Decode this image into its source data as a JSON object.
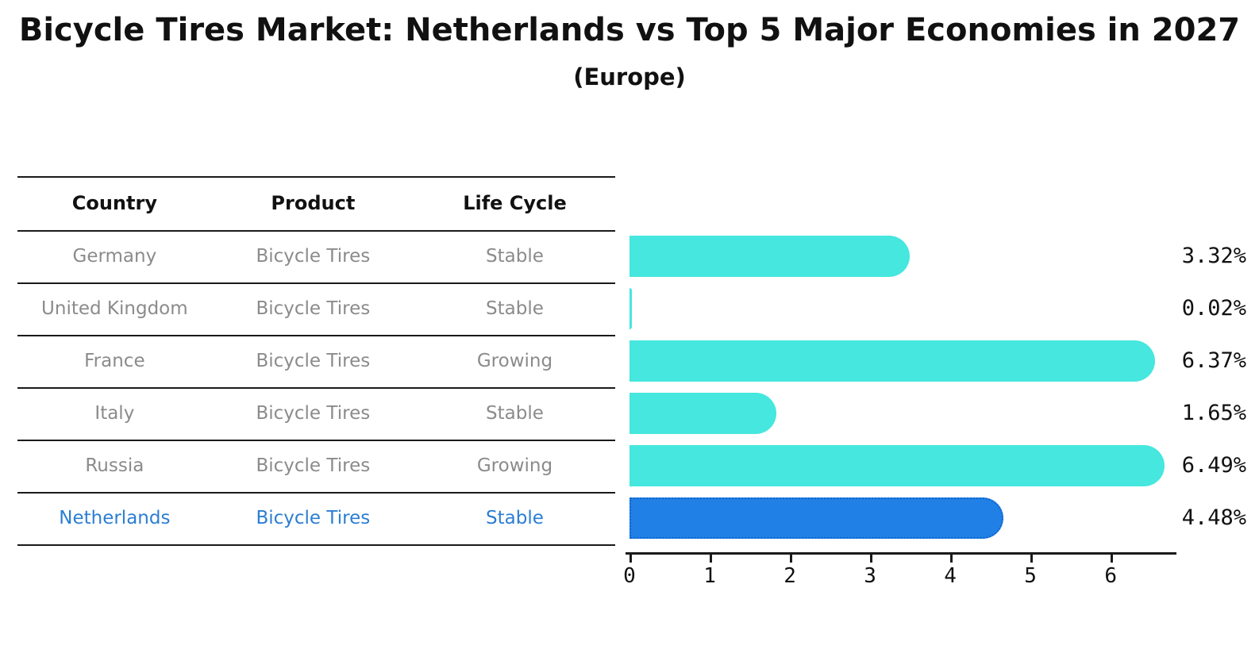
{
  "title": "Bicycle Tires Market: Netherlands vs Top 5 Major Economies in 2027",
  "subtitle": "(Europe)",
  "table": {
    "headers": [
      "Country",
      "Product",
      "Life Cycle"
    ],
    "rows": [
      {
        "country": "Germany",
        "product": "Bicycle Tires",
        "life_cycle": "Stable",
        "highlight": false
      },
      {
        "country": "United Kingdom",
        "product": "Bicycle Tires",
        "life_cycle": "Stable",
        "highlight": false
      },
      {
        "country": "France",
        "product": "Bicycle Tires",
        "life_cycle": "Growing",
        "highlight": false
      },
      {
        "country": "Italy",
        "product": "Bicycle Tires",
        "life_cycle": "Stable",
        "highlight": false
      },
      {
        "country": "Russia",
        "product": "Bicycle Tires",
        "life_cycle": "Growing",
        "highlight": false
      },
      {
        "country": "Netherlands",
        "product": "Bicycle Tires",
        "life_cycle": "Stable",
        "highlight": true
      }
    ]
  },
  "chart_data": {
    "type": "bar",
    "orientation": "horizontal",
    "title": "Bicycle Tires Market: Netherlands vs Top 5 Major Economies in 2027",
    "subtitle": "(Europe)",
    "categories": [
      "Germany",
      "United Kingdom",
      "France",
      "Italy",
      "Russia",
      "Netherlands"
    ],
    "values": [
      3.32,
      0.02,
      6.37,
      1.65,
      6.49,
      4.48
    ],
    "value_labels": [
      "3.32%",
      "0.02%",
      "6.37%",
      "1.65%",
      "6.49%",
      "4.48%"
    ],
    "xlabel": "",
    "ylabel": "",
    "xlim": [
      0,
      6.81
    ],
    "x_ticks": [
      0,
      1,
      2,
      3,
      4,
      5,
      6
    ],
    "grid": false,
    "legend": false,
    "highlight_category": "Netherlands",
    "highlight_index": 5
  },
  "colors": {
    "bar_cyan": "#45e7de",
    "bar_blue": "#2080e6",
    "bar_blue_border": "#0c67cf",
    "text_gray": "#8b8b8b",
    "text_blue": "#2b7ed3",
    "text_black": "#111111",
    "line_black": "#1a1a1a"
  }
}
